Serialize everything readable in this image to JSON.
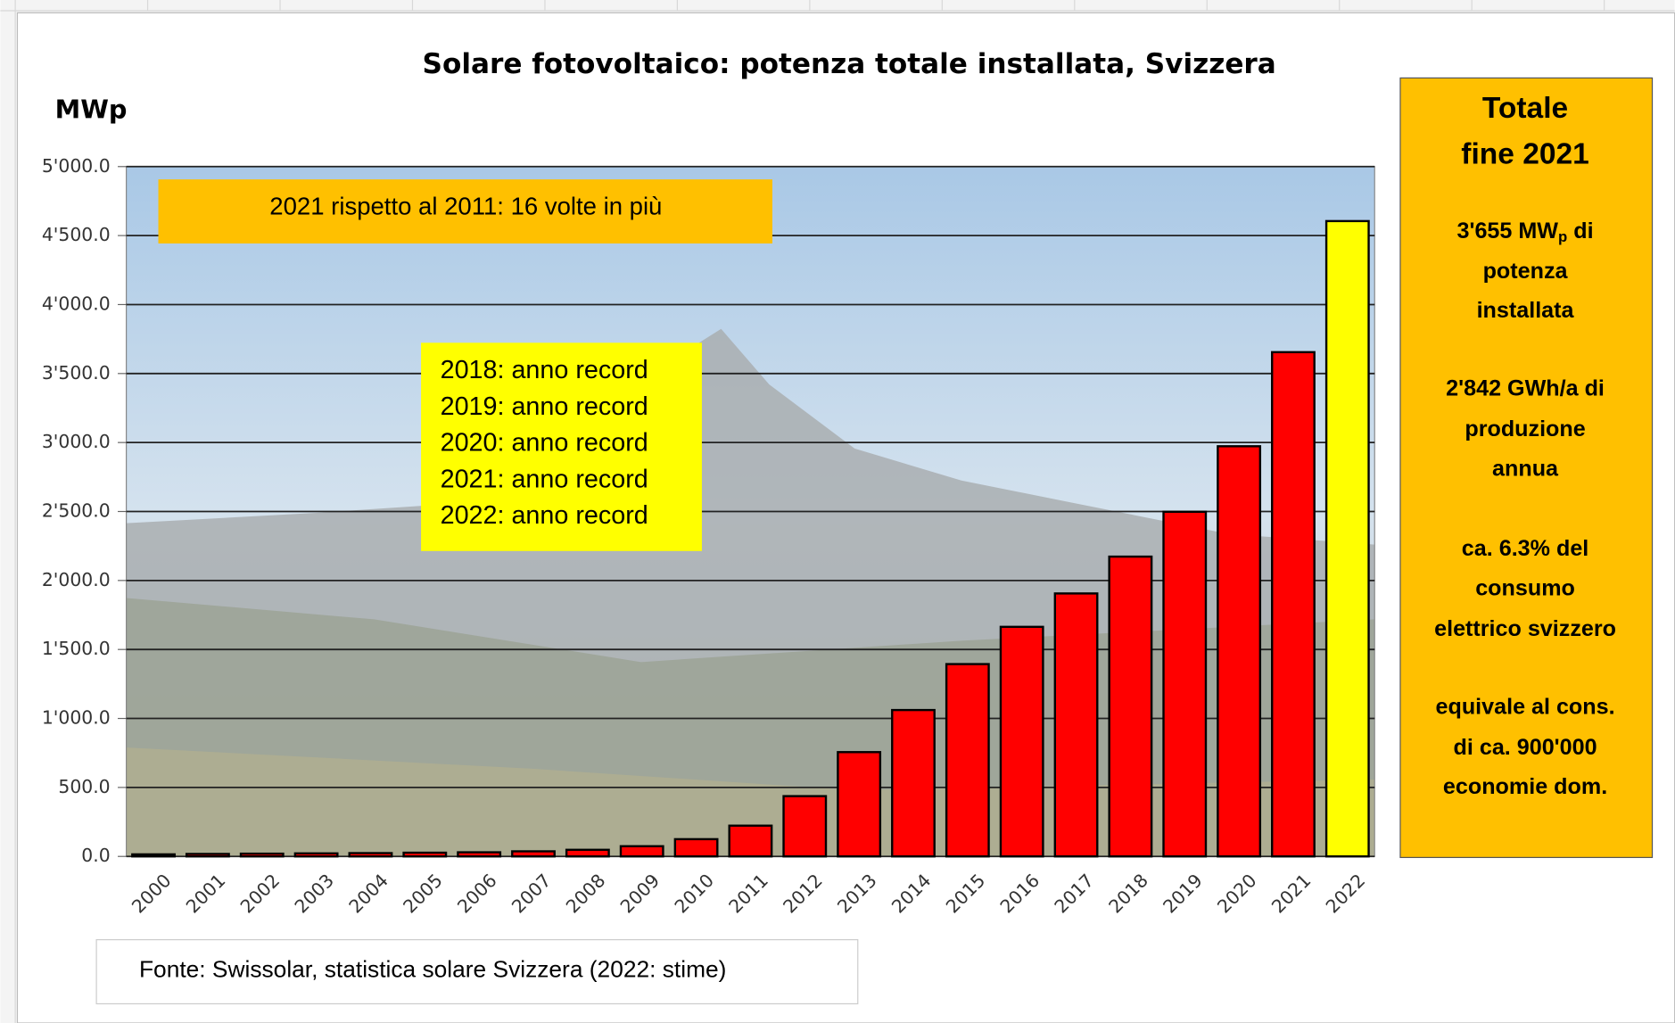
{
  "chart_data": {
    "type": "bar",
    "title": "Solare fotovoltaico: potenza totale installata, Svizzera",
    "y_label": "MWp",
    "categories": [
      "2000",
      "2001",
      "2002",
      "2003",
      "2004",
      "2005",
      "2006",
      "2007",
      "2008",
      "2009",
      "2010",
      "2011",
      "2012",
      "2013",
      "2014",
      "2015",
      "2016",
      "2017",
      "2018",
      "2019",
      "2020",
      "2021",
      "2022"
    ],
    "values": [
      15,
      18,
      20,
      22,
      24,
      27,
      30,
      37,
      48,
      74,
      125,
      223,
      437,
      756,
      1061,
      1394,
      1664,
      1906,
      2173,
      2498,
      2973,
      3655,
      4605
    ],
    "colors": [
      "#ff0000",
      "#ff0000",
      "#ff0000",
      "#ff0000",
      "#ff0000",
      "#ff0000",
      "#ff0000",
      "#ff0000",
      "#ff0000",
      "#ff0000",
      "#ff0000",
      "#ff0000",
      "#ff0000",
      "#ff0000",
      "#ff0000",
      "#ff0000",
      "#ff0000",
      "#ff0000",
      "#ff0000",
      "#ff0000",
      "#ff0000",
      "#ff0000",
      "#ffff00"
    ],
    "ylim": [
      0,
      5000
    ],
    "yticks": [
      {
        "value": 0,
        "label": "0.0"
      },
      {
        "value": 500,
        "label": "500.0"
      },
      {
        "value": 1000,
        "label": "1'000.0"
      },
      {
        "value": 1500,
        "label": "1'500.0"
      },
      {
        "value": 2000,
        "label": "2'000.0"
      },
      {
        "value": 2500,
        "label": "2'500.0"
      },
      {
        "value": 3000,
        "label": "3'000.0"
      },
      {
        "value": 3500,
        "label": "3'500.0"
      },
      {
        "value": 4000,
        "label": "4'000.0"
      },
      {
        "value": 4500,
        "label": "4'500.0"
      },
      {
        "value": 5000,
        "label": "5'000.0"
      }
    ],
    "grid": true,
    "annotations": [
      "2021 rispetto al 2011: 16 volte in più"
    ],
    "records": [
      "2018: anno record",
      "2019: anno record",
      "2020: anno record",
      "2021: anno record",
      "2022: anno record"
    ],
    "info_box": {
      "title": [
        "Totale",
        "fine 2021"
      ],
      "lines": [
        [
          "3'655 MW",
          "p",
          " di"
        ],
        "potenza",
        "installata",
        "2'842 GWh/a di",
        "produzione",
        "annua",
        "ca. 6.3% del",
        "consumo",
        "elettrico svizzero",
        "equivale al cons.",
        "di ca. 900'000",
        "economie dom."
      ]
    },
    "source": "Fonte: Swissolar, statistica solare Svizzera (2022: stime)"
  }
}
